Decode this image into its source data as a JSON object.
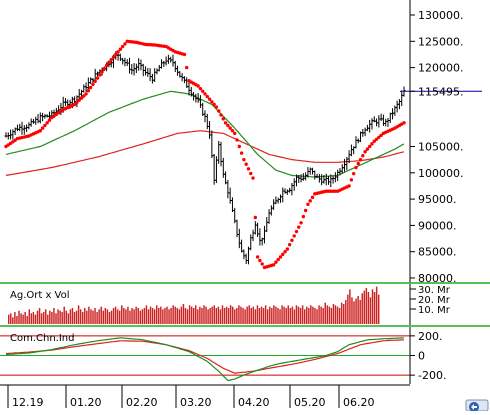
{
  "colors": {
    "price_bars": "#000000",
    "sar_dots": "#ff0000",
    "ma_short": "#228b22",
    "ma_long": "#dd2222",
    "last_price_line": "#000099",
    "volume_bars": "#cc2222",
    "separator": "#22aa22",
    "cci_line": "#228b22",
    "cci_signal": "#dd2222",
    "cci_level": "#cc0000",
    "cci_zero": "#22aa22"
  },
  "x_axis": {
    "labels": [
      "12.19",
      "01.20",
      "02.20",
      "03.20",
      "04.20",
      "05.20",
      "06.20"
    ]
  },
  "corner_icon": "chart-nav-icon",
  "chart_data": [
    {
      "type": "ohlc",
      "panel": "price",
      "ylim": [
        80000,
        130000
      ],
      "y_ticks": [
        {
          "label": "130000.",
          "value": 130000
        },
        {
          "label": "125000.",
          "value": 125000
        },
        {
          "label": "120000.",
          "value": 120000
        },
        {
          "label": "115495.",
          "value": 115495,
          "is_last_price": true
        },
        {
          "label": "105000.",
          "value": 105000
        },
        {
          "label": "100000.",
          "value": 100000
        },
        {
          "label": "95000.",
          "value": 95000
        },
        {
          "label": "90000.",
          "value": 90000
        },
        {
          "label": "85000.",
          "value": 85000
        },
        {
          "label": "80000.",
          "value": 80000
        }
      ],
      "last_price": 115495,
      "x": [
        "12.19",
        "01.20",
        "02.20",
        "03.20",
        "04.20",
        "05.20",
        "06.20"
      ],
      "series": [
        {
          "role": "price",
          "anchors": [
            [
              0,
              107000
            ],
            [
              5,
              108500
            ],
            [
              10,
              109000
            ],
            [
              15,
              110500
            ],
            [
              20,
              111000
            ],
            [
              25,
              113000
            ],
            [
              30,
              114000
            ],
            [
              35,
              116500
            ],
            [
              40,
              119000
            ],
            [
              45,
              121000
            ],
            [
              49,
              122500
            ],
            [
              52,
              121000
            ],
            [
              55,
              119500
            ],
            [
              58,
              120500
            ],
            [
              61,
              119000
            ],
            [
              64,
              118000
            ],
            [
              67,
              120000
            ],
            [
              70,
              121500
            ],
            [
              73,
              121000
            ],
            [
              76,
              118500
            ],
            [
              80,
              116000
            ],
            [
              84,
              113500
            ],
            [
              87,
              110500
            ],
            [
              89,
              107500
            ],
            [
              91,
              98500
            ],
            [
              93,
              105500
            ],
            [
              95,
              99500
            ],
            [
              97,
              96500
            ],
            [
              99,
              92500
            ],
            [
              101,
              88500
            ],
            [
              103,
              85000
            ],
            [
              105,
              83500
            ],
            [
              107,
              87500
            ],
            [
              109,
              90500
            ],
            [
              111,
              87000
            ],
            [
              113,
              88500
            ],
            [
              115,
              92500
            ],
            [
              118,
              94500
            ],
            [
              121,
              96500
            ],
            [
              124,
              97000
            ],
            [
              127,
              99000
            ],
            [
              130,
              99000
            ],
            [
              133,
              100500
            ],
            [
              136,
              99000
            ],
            [
              139,
              98500
            ],
            [
              142,
              98500
            ],
            [
              145,
              100000
            ],
            [
              148,
              102000
            ],
            [
              151,
              104500
            ],
            [
              154,
              106500
            ],
            [
              157,
              108500
            ],
            [
              160,
              109500
            ],
            [
              163,
              110000
            ],
            [
              166,
              109500
            ],
            [
              169,
              111500
            ],
            [
              172,
              113500
            ],
            [
              174,
              115500
            ]
          ]
        },
        {
          "role": "sar",
          "anchors": [
            [
              0,
              105000
            ],
            [
              5,
              106500
            ],
            [
              10,
              107000
            ],
            [
              15,
              108000
            ],
            [
              20,
              110500
            ],
            [
              25,
              112000
            ],
            [
              30,
              113000
            ],
            [
              35,
              115000
            ],
            [
              40,
              118000
            ],
            [
              45,
              121000
            ],
            [
              50,
              123500
            ],
            [
              53,
              125000
            ],
            [
              57,
              124800
            ],
            [
              61,
              124400
            ],
            [
              65,
              124300
            ],
            [
              70,
              124000
            ],
            [
              74,
              123000
            ],
            [
              78,
              122500
            ],
            [
              80,
              117500
            ],
            [
              84,
              116500
            ],
            [
              88,
              114500
            ],
            [
              92,
              112500
            ],
            [
              96,
              109500
            ],
            [
              100,
              107500
            ],
            [
              104,
              102500
            ],
            [
              108,
              99000
            ],
            [
              110,
              84000
            ],
            [
              113,
              82000
            ],
            [
              117,
              82500
            ],
            [
              120,
              84000
            ],
            [
              123,
              85500
            ],
            [
              126,
              88000
            ],
            [
              129,
              90500
            ],
            [
              132,
              94000
            ],
            [
              135,
              96000
            ],
            [
              140,
              96500
            ],
            [
              145,
              96500
            ],
            [
              150,
              97500
            ],
            [
              153,
              101000
            ],
            [
              157,
              104000
            ],
            [
              161,
              106000
            ],
            [
              165,
              107500
            ],
            [
              170,
              108500
            ],
            [
              174,
              109500
            ]
          ]
        },
        {
          "role": "ma_short",
          "anchors": [
            [
              0,
              103500
            ],
            [
              15,
              105000
            ],
            [
              30,
              108000
            ],
            [
              45,
              111500
            ],
            [
              60,
              114000
            ],
            [
              72,
              115500
            ],
            [
              80,
              115000
            ],
            [
              90,
              113000
            ],
            [
              100,
              108500
            ],
            [
              110,
              103500
            ],
            [
              118,
              100500
            ],
            [
              125,
              99500
            ],
            [
              135,
              99200
            ],
            [
              145,
              99500
            ],
            [
              150,
              100500
            ],
            [
              160,
              102500
            ],
            [
              170,
              104500
            ],
            [
              174,
              105500
            ]
          ]
        },
        {
          "role": "ma_long",
          "anchors": [
            [
              0,
              99500
            ],
            [
              20,
              101000
            ],
            [
              40,
              103000
            ],
            [
              60,
              105500
            ],
            [
              75,
              107500
            ],
            [
              85,
              108000
            ],
            [
              95,
              107500
            ],
            [
              105,
              105500
            ],
            [
              115,
              103500
            ],
            [
              125,
              102500
            ],
            [
              135,
              102000
            ],
            [
              145,
              102000
            ],
            [
              155,
              102300
            ],
            [
              165,
              103000
            ],
            [
              174,
              104000
            ]
          ]
        }
      ]
    },
    {
      "type": "bar",
      "panel": "volume",
      "title": "Ag.Ort x Vol",
      "y_ticks": [
        "30. Mr",
        "20. Mr",
        "10. Mr"
      ],
      "ylim": [
        0,
        30
      ],
      "values": [
        7,
        8,
        5,
        9,
        6,
        10,
        8,
        7,
        9,
        6,
        11,
        8,
        9,
        7,
        10,
        12,
        8,
        9,
        11,
        7,
        10,
        9,
        12,
        8,
        11,
        10,
        9,
        13,
        10,
        8,
        11,
        12,
        9,
        10,
        14,
        11,
        9,
        12,
        10,
        13,
        11,
        10,
        12,
        9,
        11,
        13,
        10,
        12,
        11,
        9,
        10,
        12,
        13,
        11,
        10,
        14,
        12,
        11,
        13,
        10,
        12,
        11,
        13,
        12,
        10,
        11,
        12,
        14,
        11,
        13,
        12,
        11,
        14,
        12,
        13,
        11,
        12,
        13,
        11,
        12,
        14,
        13,
        12,
        11,
        13,
        15,
        12,
        11,
        14,
        13,
        12,
        14,
        11,
        13,
        12,
        14,
        13,
        11,
        12,
        13,
        14,
        12,
        13,
        11,
        14,
        12,
        13,
        12,
        14,
        13,
        11,
        12,
        14,
        13,
        12,
        11,
        13,
        14,
        12,
        13,
        11,
        14,
        12,
        13,
        12,
        14,
        11,
        13,
        12,
        14,
        13,
        12,
        11,
        14,
        13,
        12,
        14,
        12,
        13,
        11,
        14,
        13,
        12,
        14,
        11,
        13,
        12,
        14,
        13,
        12,
        11,
        14,
        13,
        12,
        16,
        14,
        13,
        12,
        15,
        14,
        13,
        12,
        16,
        15,
        18,
        22,
        26,
        20,
        17,
        19,
        21,
        18,
        23,
        25,
        27,
        24,
        20,
        26,
        24,
        28,
        22
      ]
    },
    {
      "type": "line",
      "panel": "cci",
      "title": "Com.Chn.Ind",
      "y_ticks": [
        "200.",
        "0",
        "-200."
      ],
      "ylim": [
        -280,
        280
      ],
      "levels": [
        200,
        0,
        -200
      ],
      "series": [
        {
          "role": "cci",
          "anchors": [
            [
              0,
              10
            ],
            [
              10,
              25
            ],
            [
              20,
              60
            ],
            [
              30,
              110
            ],
            [
              40,
              150
            ],
            [
              50,
              180
            ],
            [
              60,
              160
            ],
            [
              70,
              110
            ],
            [
              80,
              40
            ],
            [
              88,
              -60
            ],
            [
              93,
              -160
            ],
            [
              97,
              -255
            ],
            [
              100,
              -240
            ],
            [
              105,
              -190
            ],
            [
              110,
              -150
            ],
            [
              115,
              -110
            ],
            [
              120,
              -80
            ],
            [
              130,
              -40
            ],
            [
              140,
              0
            ],
            [
              145,
              40
            ],
            [
              150,
              110
            ],
            [
              158,
              160
            ],
            [
              165,
              170
            ],
            [
              174,
              180
            ]
          ]
        },
        {
          "role": "cci_signal",
          "anchors": [
            [
              0,
              20
            ],
            [
              10,
              35
            ],
            [
              20,
              55
            ],
            [
              30,
              90
            ],
            [
              40,
              120
            ],
            [
              50,
              150
            ],
            [
              60,
              145
            ],
            [
              70,
              110
            ],
            [
              80,
              50
            ],
            [
              88,
              -30
            ],
            [
              95,
              -130
            ],
            [
              100,
              -180
            ],
            [
              108,
              -160
            ],
            [
              115,
              -130
            ],
            [
              125,
              -90
            ],
            [
              135,
              -40
            ],
            [
              145,
              20
            ],
            [
              155,
              110
            ],
            [
              165,
              150
            ],
            [
              174,
              160
            ]
          ]
        }
      ]
    }
  ]
}
